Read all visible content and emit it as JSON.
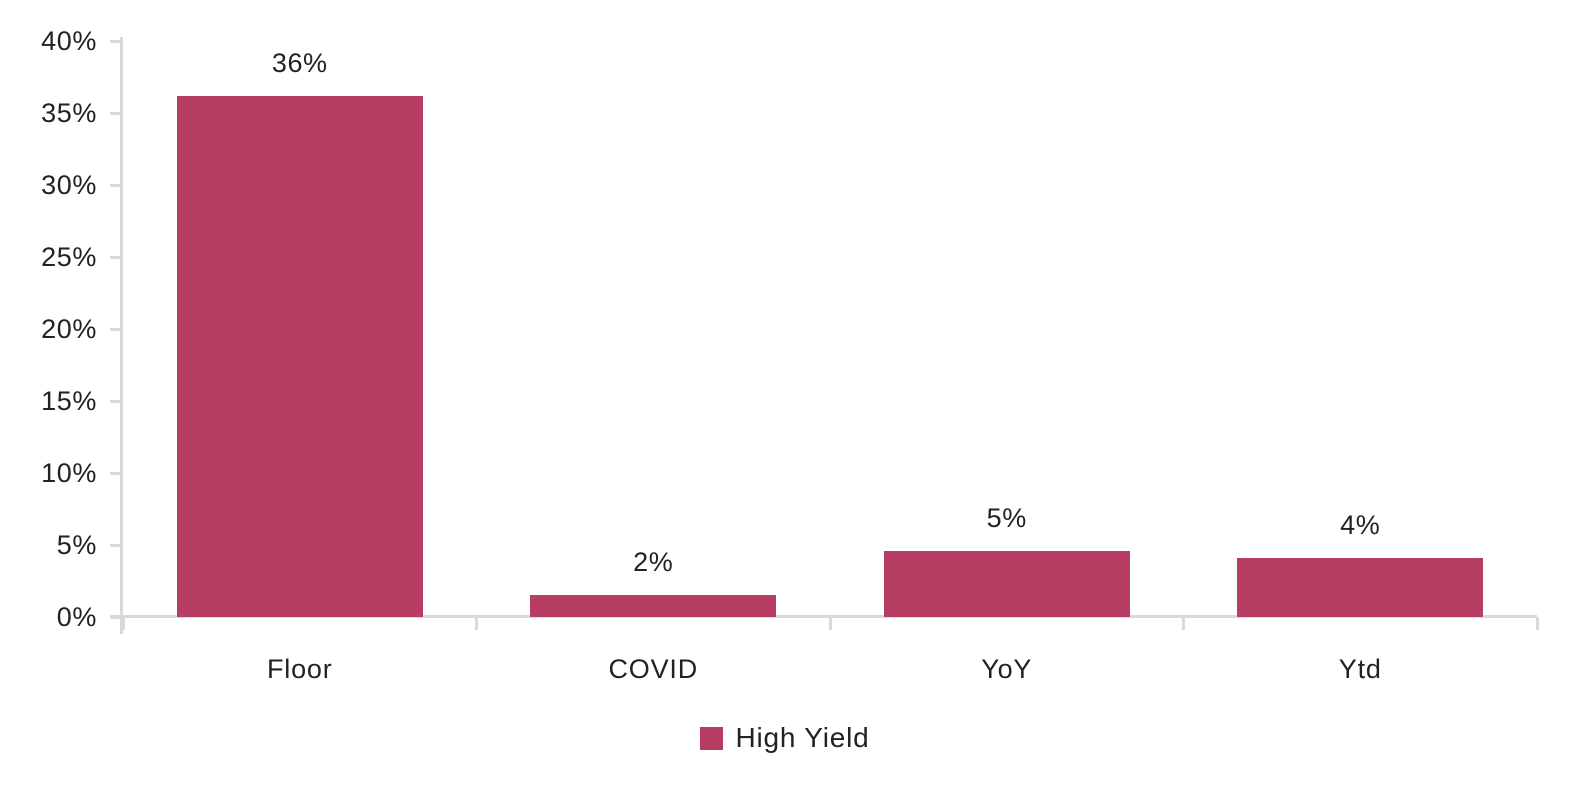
{
  "chart_data": {
    "type": "bar",
    "title": "",
    "xlabel": "",
    "ylabel": "",
    "categories": [
      "Floor",
      "COVID",
      "YoY",
      "Ytd"
    ],
    "series": [
      {
        "name": "High Yield",
        "values": [
          36.2,
          1.5,
          4.6,
          4.1
        ],
        "data_labels": [
          "36%",
          "2%",
          "5%",
          "4%"
        ]
      }
    ],
    "ylim": [
      0,
      40
    ],
    "ytick_step": 5,
    "ytick_labels": [
      "0%",
      "5%",
      "10%",
      "15%",
      "20%",
      "25%",
      "30%",
      "35%",
      "40%"
    ],
    "grid": "off",
    "legend_position": "bottom-center",
    "colors": {
      "bar": "#B83D62",
      "axis": "#D9D9D9",
      "text": "#222222",
      "background": "#FFFFFF"
    }
  }
}
